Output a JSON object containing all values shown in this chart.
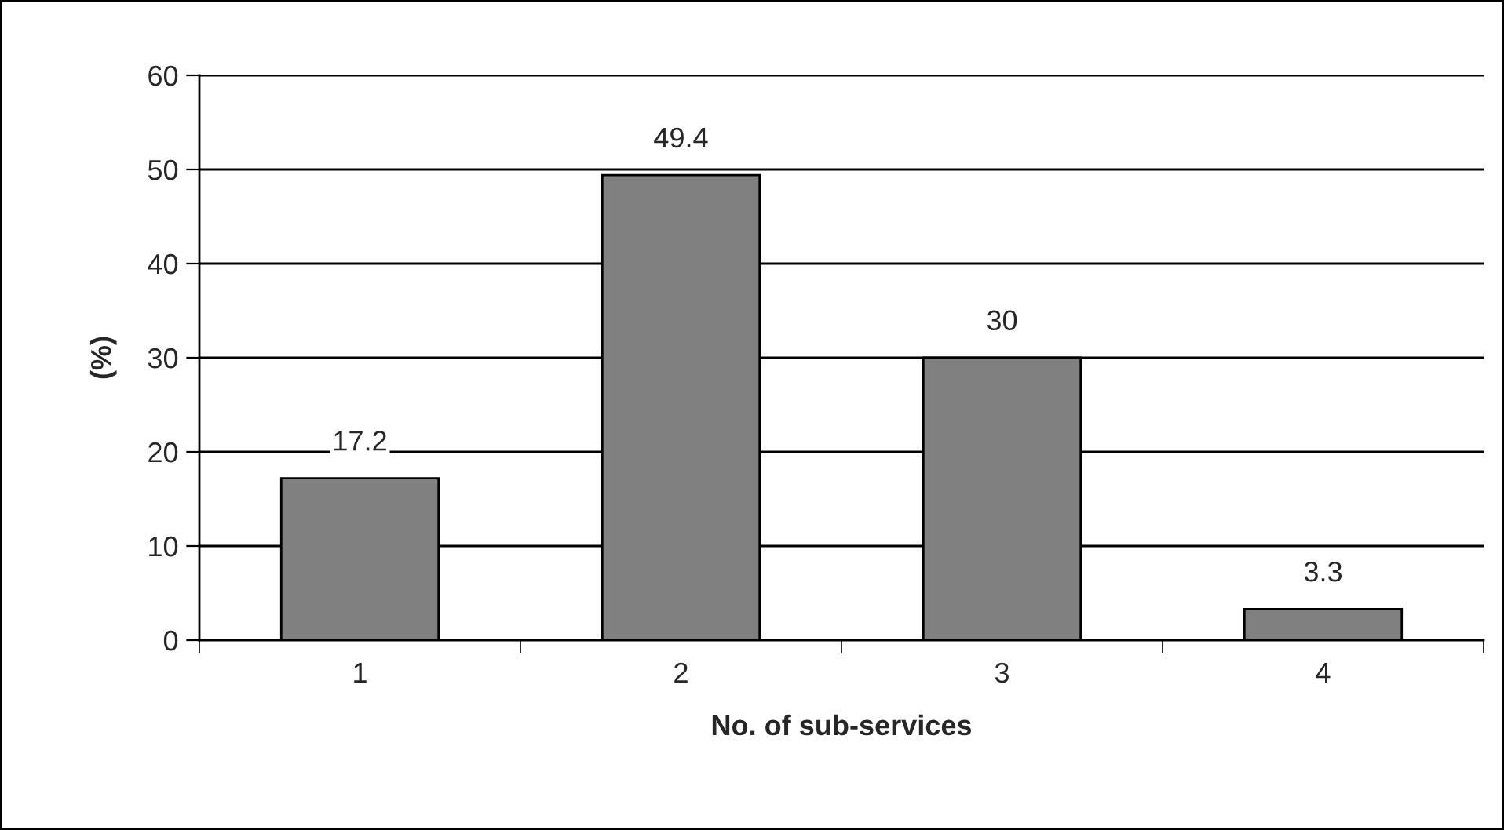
{
  "chart_data": {
    "type": "bar",
    "xlabel": "No. of sub-services",
    "ylabel": "(%)",
    "categories": [
      "1",
      "2",
      "3",
      "4"
    ],
    "values": [
      17.2,
      49.4,
      30,
      3.3
    ],
    "color": "#808080",
    "data_labels": true,
    "ylim": [
      0,
      60
    ],
    "yticks": [
      0,
      10,
      20,
      30,
      40,
      50,
      60
    ],
    "grid": "y"
  }
}
